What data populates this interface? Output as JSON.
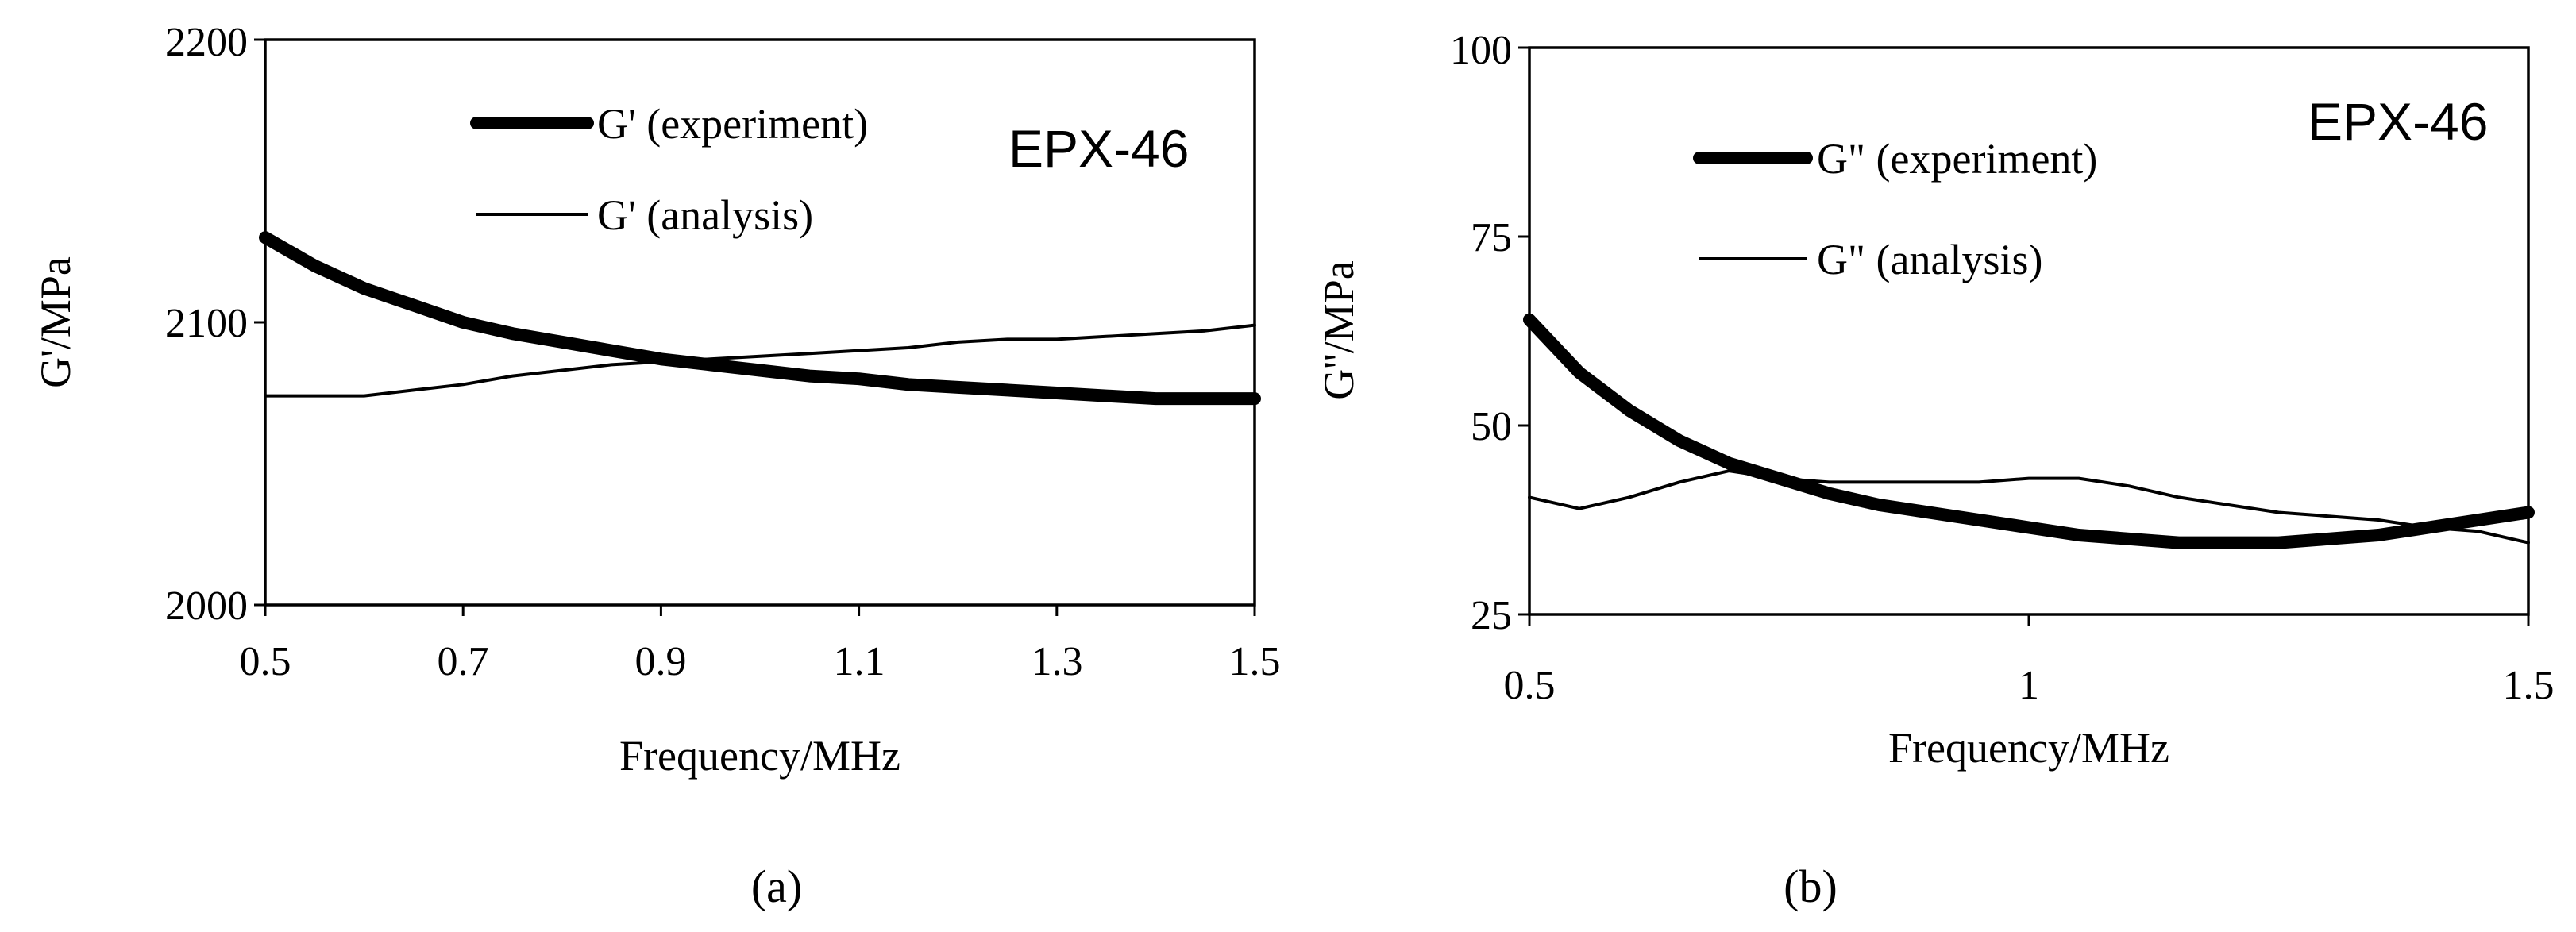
{
  "chart_data": [
    {
      "type": "line",
      "caption": "(a)",
      "sample_label": "EPX-46",
      "xlabel": "Frequency/MHz",
      "ylabel": "G'/MPa",
      "xlim": [
        0.5,
        1.5
      ],
      "ylim": [
        2000,
        2200
      ],
      "xticks": [
        0.5,
        0.7,
        0.9,
        1.1,
        1.3,
        1.5
      ],
      "xtick_labels": [
        "0.5",
        "0.7",
        "0.9",
        "1.1",
        "1.3",
        "1.5"
      ],
      "yticks": [
        2000,
        2100,
        2200
      ],
      "ytick_labels": [
        "2000",
        "2100",
        "2200"
      ],
      "grid": false,
      "legend_position": "top-right",
      "series": [
        {
          "name": "G' (experiment)",
          "weight": "thick",
          "x": [
            0.5,
            0.55,
            0.6,
            0.65,
            0.7,
            0.75,
            0.8,
            0.85,
            0.9,
            0.95,
            1.0,
            1.05,
            1.1,
            1.15,
            1.2,
            1.25,
            1.3,
            1.35,
            1.4,
            1.45,
            1.5
          ],
          "y": [
            2130,
            2120,
            2112,
            2106,
            2100,
            2096,
            2093,
            2090,
            2087,
            2085,
            2083,
            2081,
            2080,
            2078,
            2077,
            2076,
            2075,
            2074,
            2073,
            2073,
            2073
          ]
        },
        {
          "name": "G' (analysis)",
          "weight": "thin",
          "x": [
            0.5,
            0.55,
            0.6,
            0.65,
            0.7,
            0.75,
            0.8,
            0.85,
            0.9,
            0.95,
            1.0,
            1.05,
            1.1,
            1.15,
            1.2,
            1.25,
            1.3,
            1.35,
            1.4,
            1.45,
            1.5
          ],
          "y": [
            2074,
            2074,
            2074,
            2076,
            2078,
            2081,
            2083,
            2085,
            2086,
            2087,
            2088,
            2089,
            2090,
            2091,
            2093,
            2094,
            2094,
            2095,
            2096,
            2097,
            2099
          ]
        }
      ]
    },
    {
      "type": "line",
      "caption": "(b)",
      "sample_label": "EPX-46",
      "xlabel": "Frequency/MHz",
      "ylabel": "G''/MPa",
      "xlim": [
        0.5,
        1.5
      ],
      "ylim": [
        25,
        100
      ],
      "xticks": [
        0.5,
        1.0,
        1.5
      ],
      "xtick_labels": [
        "0.5",
        "1",
        "1.5"
      ],
      "yticks": [
        25,
        50,
        75,
        100
      ],
      "ytick_labels": [
        "25",
        "50",
        "75",
        "100"
      ],
      "grid": false,
      "legend_position": "top-left",
      "series": [
        {
          "name": "G\" (experiment)",
          "weight": "thick",
          "x": [
            0.5,
            0.55,
            0.6,
            0.65,
            0.7,
            0.75,
            0.8,
            0.85,
            0.9,
            0.95,
            1.0,
            1.05,
            1.1,
            1.15,
            1.2,
            1.25,
            1.3,
            1.35,
            1.4,
            1.45,
            1.5
          ],
          "y": [
            64,
            57,
            52,
            48,
            45,
            43,
            41,
            39.5,
            38.5,
            37.5,
            36.5,
            35.5,
            35,
            34.5,
            34.5,
            34.5,
            35,
            35.5,
            36.5,
            37.5,
            38.5
          ]
        },
        {
          "name": "G\" (analysis)",
          "weight": "thin",
          "x": [
            0.5,
            0.55,
            0.6,
            0.65,
            0.7,
            0.75,
            0.8,
            0.85,
            0.9,
            0.95,
            1.0,
            1.05,
            1.1,
            1.15,
            1.2,
            1.25,
            1.3,
            1.35,
            1.4,
            1.45,
            1.5
          ],
          "y": [
            40.5,
            39,
            40.5,
            42.5,
            44,
            43,
            42.5,
            42.5,
            42.5,
            42.5,
            43,
            43,
            42,
            40.5,
            39.5,
            38.5,
            38,
            37.5,
            36.5,
            36,
            34.5
          ]
        }
      ]
    }
  ]
}
